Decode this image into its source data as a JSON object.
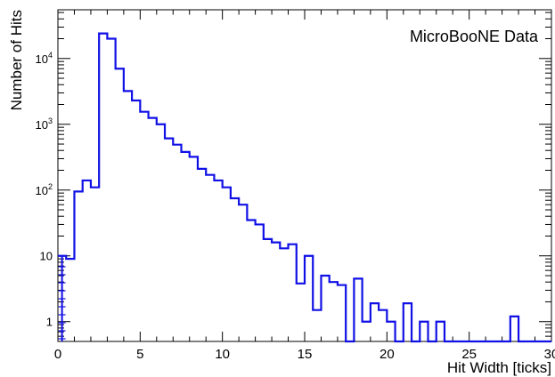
{
  "chart_data": {
    "type": "histogram",
    "annotation": "MicroBooNE Data",
    "xlabel": "Hit Width [ticks]",
    "ylabel": "Number of Hits",
    "xlim": [
      0,
      30
    ],
    "ylim": [
      0.5,
      55000
    ],
    "yscale": "log",
    "grid": false,
    "line_color": "#1010e6",
    "bin_width": 0.5,
    "x_ticks": [
      0,
      5,
      10,
      15,
      20,
      25,
      30
    ],
    "x_tick_labels": [
      "0",
      "5",
      "10",
      "15",
      "20",
      "25",
      "30"
    ],
    "y_ticks": [
      1,
      10,
      100,
      1000,
      10000
    ],
    "y_tick_labels": [
      "1",
      "10",
      "10^2",
      "10^3",
      "10^4"
    ],
    "series": [
      {
        "x_bin_starts": [
          0,
          0.5,
          1,
          1.5,
          2,
          2.5,
          3,
          3.5,
          4,
          4.5,
          5,
          5.5,
          6,
          6.5,
          7,
          7.5,
          8,
          8.5,
          9,
          9.5,
          10,
          10.5,
          11,
          11.5,
          12,
          12.5,
          13,
          13.5,
          14,
          14.5,
          15,
          15.5,
          16,
          16.5,
          17,
          17.5,
          18,
          18.5,
          19,
          19.5,
          20,
          20.5,
          21,
          21.5,
          22,
          22.5,
          23,
          23.5,
          24,
          24.5,
          25,
          25.5,
          26,
          26.5,
          27,
          27.5,
          28,
          28.5,
          29,
          29.5
        ],
        "values": [
          10,
          9,
          95,
          140,
          110,
          24000,
          20000,
          7000,
          3200,
          2300,
          1550,
          1250,
          1000,
          610,
          490,
          380,
          320,
          210,
          170,
          140,
          110,
          75,
          60,
          35,
          30,
          18,
          16,
          13,
          15,
          3.8,
          10,
          1.5,
          5,
          4,
          3.6,
          0.4,
          4.5,
          1,
          1.9,
          1.5,
          1,
          0.4,
          1.9,
          0.4,
          1,
          0.4,
          1,
          0.4,
          0.4,
          0.4,
          0.4,
          0.4,
          0.4,
          0.4,
          0.4,
          1.2,
          0.4,
          0.4,
          0.4,
          0.4
        ]
      }
    ]
  }
}
